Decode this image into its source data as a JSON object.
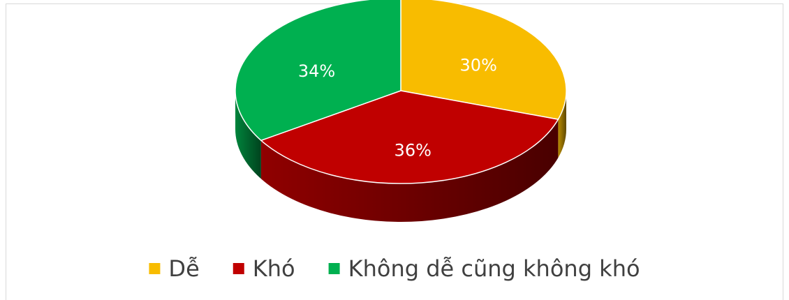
{
  "chart_data": {
    "type": "pie",
    "categories": [
      "Dễ",
      "Khó",
      "Không dễ cũng không khó"
    ],
    "values": [
      30,
      36,
      34
    ],
    "value_labels": [
      "30%",
      "36%",
      "34%"
    ],
    "colors": [
      "#F8BC00",
      "#C00000",
      "#00B050"
    ],
    "legend": "bottom"
  }
}
